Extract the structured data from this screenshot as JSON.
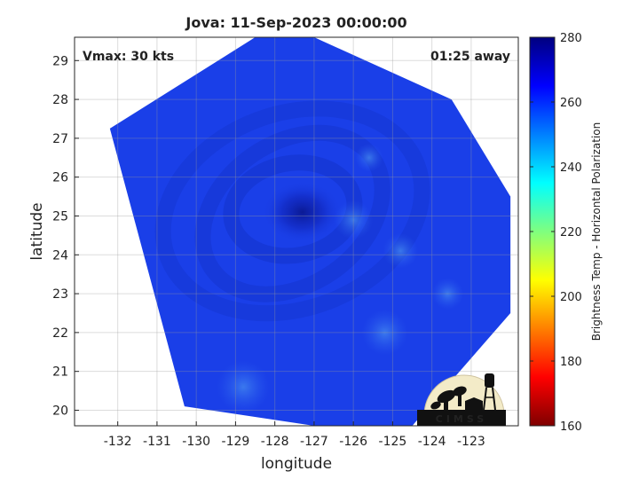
{
  "figure": {
    "title": "Jova: 11-Sep-2023 00:00:00",
    "vmax_text": "Vmax: 30 kts",
    "away_text": "01:25 away",
    "xlabel": "longitude",
    "ylabel": "latitude",
    "colorbar_label": "Brightness Temp - Horizontal Polarization",
    "logo_text": "CIMSS"
  },
  "chart_data": {
    "type": "heatmap",
    "title": "Jova: 11-Sep-2023 00:00:00",
    "xlabel": "longitude",
    "ylabel": "latitude",
    "xlim": [
      -133.1,
      -121.8
    ],
    "ylim": [
      19.6,
      29.6
    ],
    "x_ticks": [
      -132,
      -131,
      -130,
      -129,
      -128,
      -127,
      -126,
      -125,
      -124,
      -123
    ],
    "y_ticks": [
      20,
      21,
      22,
      23,
      24,
      25,
      26,
      27,
      28,
      29
    ],
    "grid": true,
    "colorbar": {
      "min": 160,
      "max": 280,
      "ticks": [
        160,
        180,
        200,
        220,
        240,
        260,
        280
      ],
      "label": "Brightness Temp - Horizontal Polarization",
      "colormap": "jet-reversed",
      "placement": "right"
    },
    "storm_center": {
      "lon": -127.3,
      "lat": 25.1
    },
    "swath_edge": [
      [
        -132.2,
        27.25
      ],
      [
        -130.3,
        20.1
      ],
      [
        -127.0,
        19.6
      ],
      [
        -124.5,
        19.6
      ],
      [
        -122.0,
        22.5
      ],
      [
        -122.0,
        25.5
      ],
      [
        -123.5,
        28.0
      ],
      [
        -127.0,
        29.6
      ],
      [
        -128.5,
        29.6
      ]
    ],
    "colors": {
      "dominant": "#1a3fe8",
      "core": "#0a1a9a",
      "warm_patches": "#3a88ec"
    }
  }
}
